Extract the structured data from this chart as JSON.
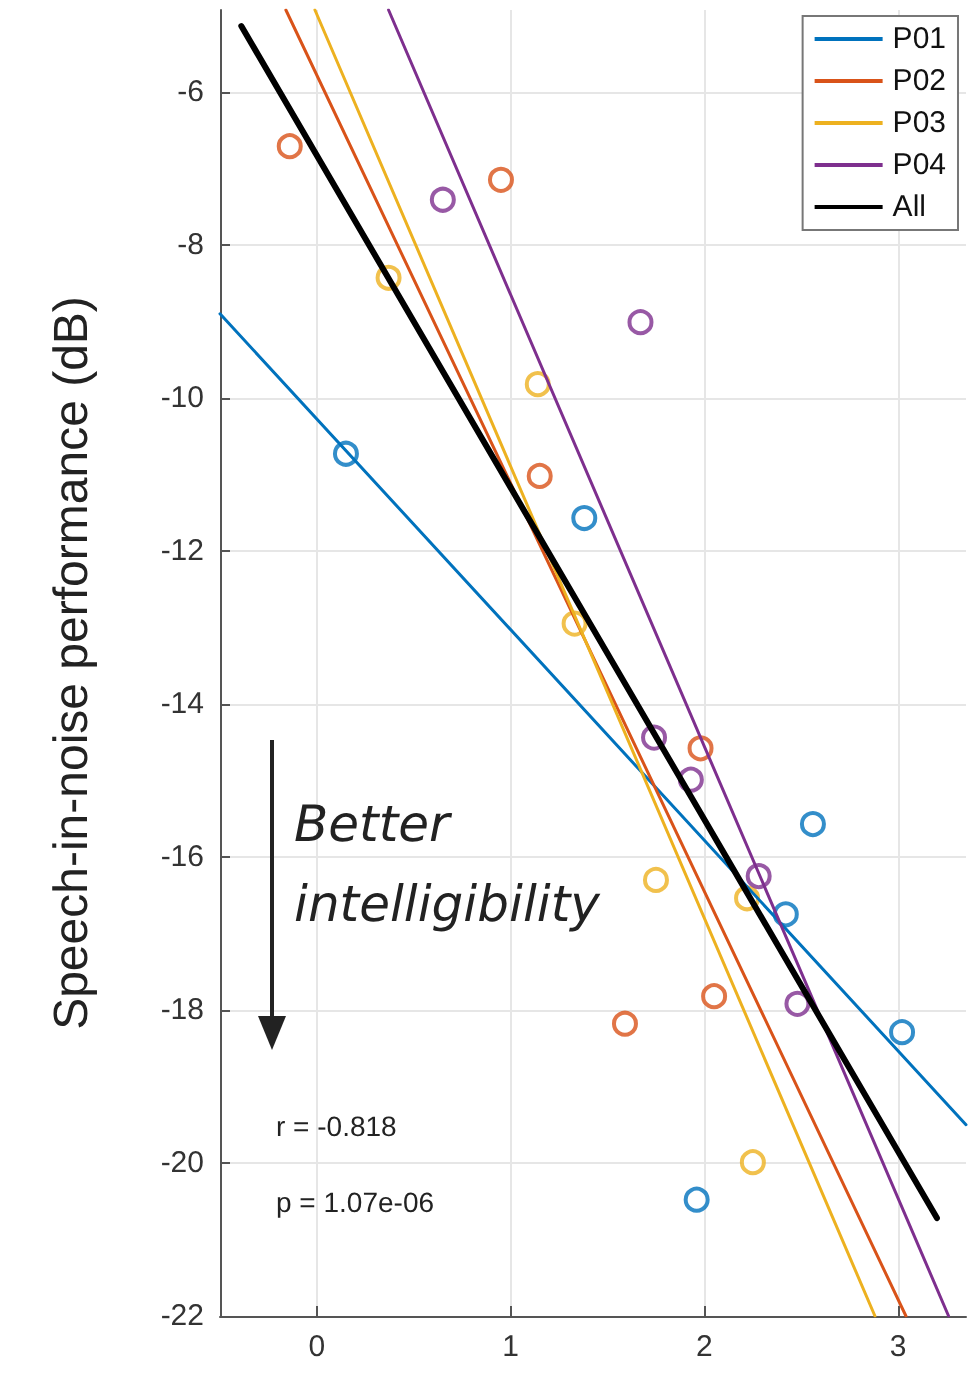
{
  "chart_data": {
    "type": "scatter",
    "ylabel": "Speech-in-noise performance (dB)",
    "xlim": [
      -0.5,
      3.35
    ],
    "ylim": [
      -22,
      -4.93
    ],
    "xticks": [
      0,
      1,
      2,
      3
    ],
    "yticks": [
      -22,
      -20,
      -18,
      -16,
      -14,
      -12,
      -10,
      -8,
      -6
    ],
    "grid": true,
    "legend": "top right",
    "marker": "circle",
    "annotations": [
      "Better intelligibility",
      "r = -0.818",
      "p = 1.07e-06"
    ],
    "series": [
      {
        "type": "scatter",
        "color": "#0072bd",
        "x": [
          0.15,
          1.38,
          2.56,
          2.42,
          3.02,
          1.96
        ],
        "values": [
          -10.73,
          -11.57,
          -15.57,
          -16.75,
          -18.29,
          -20.48
        ]
      },
      {
        "type": "scatter",
        "color": "#d95319",
        "x": [
          -0.14,
          0.95,
          1.15,
          1.98,
          2.05,
          1.59
        ],
        "values": [
          -6.71,
          -7.15,
          -11.02,
          -14.58,
          -17.82,
          -18.18
        ]
      },
      {
        "type": "scatter",
        "color": "#edb120",
        "x": [
          0.37,
          1.14,
          1.33,
          1.75,
          2.22,
          2.25
        ],
        "values": [
          -8.43,
          -9.82,
          -12.95,
          -16.3,
          -16.54,
          -19.99
        ]
      },
      {
        "type": "scatter",
        "color": "#7e2f8e",
        "x": [
          0.65,
          1.67,
          1.74,
          1.93,
          2.28,
          2.48
        ],
        "values": [
          -7.41,
          -9.01,
          -14.44,
          -14.99,
          -16.25,
          -17.92
        ]
      },
      {
        "type": "line",
        "name": "P01",
        "color": "#0072bd",
        "marker": "none",
        "x": [
          -0.5,
          3.35
        ],
        "values": [
          -8.9,
          -19.5
        ]
      },
      {
        "type": "line",
        "name": "P02",
        "color": "#d95319",
        "marker": "none",
        "x": [
          -0.16,
          3.04
        ],
        "values": [
          -4.93,
          -22
        ]
      },
      {
        "type": "line",
        "name": "P03",
        "color": "#edb120",
        "marker": "none",
        "x": [
          -0.01,
          2.88
        ],
        "values": [
          -4.93,
          -22
        ]
      },
      {
        "type": "line",
        "name": "P04",
        "color": "#7e2f8e",
        "marker": "none",
        "x": [
          0.37,
          3.26
        ],
        "values": [
          -4.93,
          -22
        ]
      },
      {
        "type": "line",
        "name": "All",
        "color": "#000000",
        "marker": "none",
        "x": [
          -0.39,
          3.2
        ],
        "values": [
          -5.14,
          -20.72
        ]
      }
    ]
  }
}
